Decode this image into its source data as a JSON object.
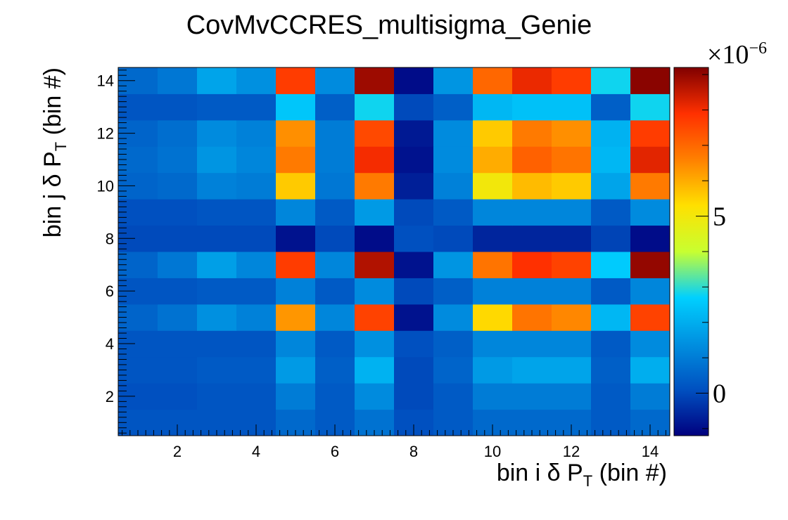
{
  "chart_data": {
    "type": "heatmap",
    "title": "CovMvCCRES_multisigma_Genie",
    "xlabel": {
      "main": "bin i δ P",
      "sub": "T",
      "tail": " (bin #)"
    },
    "ylabel": {
      "main": "bin j δ P",
      "sub": "T",
      "tail": " (bin #)"
    },
    "xlim": [
      0.5,
      14.5
    ],
    "ylim": [
      0.5,
      14.5
    ],
    "x_ticks": [
      2,
      4,
      6,
      8,
      10,
      12,
      14
    ],
    "y_ticks": [
      2,
      4,
      6,
      8,
      10,
      12,
      14
    ],
    "x_bins": [
      1,
      2,
      3,
      4,
      5,
      6,
      7,
      8,
      9,
      10,
      11,
      12,
      13,
      14
    ],
    "y_bins": [
      1,
      2,
      3,
      4,
      5,
      6,
      7,
      8,
      9,
      10,
      11,
      12,
      13,
      14
    ],
    "z_range": [
      -1.2,
      9.2
    ],
    "z_scale_label": {
      "base": "×10",
      "exp": "−6"
    },
    "z_ticks": [
      0,
      5
    ],
    "colormap": [
      "#00007f",
      "#0050c0",
      "#0090e0",
      "#00d0ff",
      "#c8ff30",
      "#ffe000",
      "#ff8000",
      "#ff3000",
      "#800000"
    ],
    "z": [
      [
        0.2,
        0.2,
        0.2,
        0.2,
        0.6,
        0.3,
        0.8,
        0.1,
        0.3,
        0.6,
        0.6,
        0.6,
        0.3,
        0.6
      ],
      [
        0.1,
        0.1,
        0.2,
        0.2,
        1.0,
        0.3,
        1.3,
        0.0,
        0.3,
        1.0,
        1.0,
        1.0,
        0.3,
        1.0
      ],
      [
        0.2,
        0.2,
        0.3,
        0.3,
        1.6,
        0.4,
        2.1,
        0.0,
        0.5,
        1.6,
        1.8,
        1.8,
        0.4,
        2.0
      ],
      [
        0.2,
        0.2,
        0.2,
        0.2,
        1.2,
        0.3,
        1.4,
        0.1,
        0.4,
        1.2,
        1.2,
        1.2,
        0.3,
        1.3
      ],
      [
        0.5,
        0.8,
        1.4,
        1.1,
        6.3,
        1.2,
        7.6,
        -0.9,
        1.3,
        5.4,
        6.8,
        6.5,
        2.2,
        7.6
      ],
      [
        0.2,
        0.2,
        0.3,
        0.3,
        1.1,
        0.3,
        1.3,
        0.0,
        0.4,
        1.1,
        1.1,
        1.1,
        0.3,
        1.2
      ],
      [
        0.5,
        0.9,
        1.7,
        1.2,
        7.7,
        1.2,
        8.7,
        -0.9,
        1.5,
        6.8,
        7.9,
        7.6,
        2.6,
        9.0
      ],
      [
        0.0,
        0.0,
        0.0,
        0.0,
        -0.9,
        0.0,
        -1.0,
        0.1,
        0.0,
        -0.6,
        -0.6,
        -0.6,
        -0.1,
        -1.0
      ],
      [
        0.1,
        0.1,
        0.2,
        0.2,
        1.2,
        0.3,
        1.6,
        0.0,
        0.3,
        1.2,
        1.2,
        1.2,
        0.3,
        1.3
      ],
      [
        0.5,
        0.6,
        1.1,
        1.0,
        5.6,
        0.9,
        6.7,
        -0.7,
        1.1,
        5.0,
        5.8,
        5.6,
        1.8,
        6.7
      ],
      [
        0.6,
        0.8,
        1.5,
        1.2,
        6.7,
        1.0,
        8.0,
        -0.9,
        1.3,
        6.0,
        7.1,
        6.8,
        2.2,
        8.2
      ],
      [
        0.5,
        0.7,
        1.3,
        1.1,
        6.4,
        1.0,
        7.5,
        -0.8,
        1.3,
        5.6,
        6.7,
        6.4,
        2.1,
        7.7
      ],
      [
        0.2,
        0.2,
        0.3,
        0.3,
        2.5,
        0.4,
        2.8,
        0.0,
        0.4,
        2.2,
        2.4,
        2.4,
        0.4,
        2.8
      ],
      [
        0.6,
        0.9,
        1.8,
        1.4,
        7.7,
        1.3,
        8.9,
        -1.0,
        1.5,
        7.0,
        8.1,
        7.7,
        2.8,
        9.1
      ]
    ]
  }
}
